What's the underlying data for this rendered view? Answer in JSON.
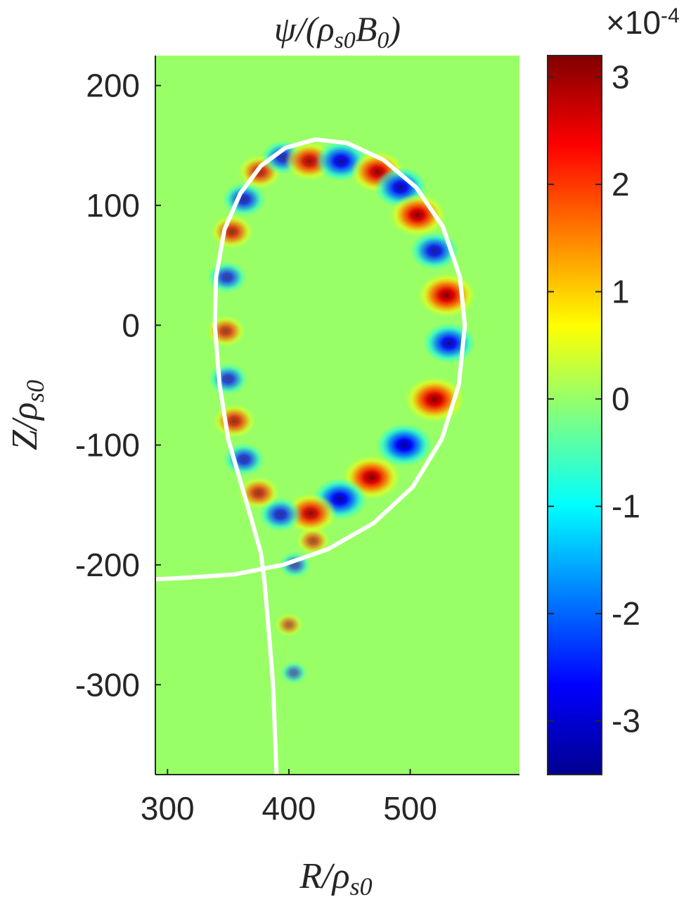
{
  "chart_data": {
    "type": "heatmap",
    "title": {
      "main": "ψ/(ρ",
      "sub1": "s0",
      "mid": "B",
      "sub2": "0",
      "close": ")"
    },
    "xlabel": {
      "main": "R/ρ",
      "sub": "s0"
    },
    "ylabel": {
      "main": "Z/ρ",
      "sub": "s0"
    },
    "xlim": [
      290,
      590
    ],
    "ylim": [
      -375,
      225
    ],
    "x_ticks": [
      300,
      400,
      500
    ],
    "y_ticks": [
      200,
      100,
      0,
      -100,
      -200,
      -300
    ],
    "colorbar": {
      "colormap": "jet",
      "range": [
        -3.5,
        3.2
      ],
      "ticks": [
        3,
        2,
        1,
        0,
        -1,
        -2,
        -3
      ],
      "exponent_label": {
        "base": "×10",
        "exp": "-4"
      }
    },
    "background_color": "#99ff66",
    "separatrix_color": "#ffffff",
    "separatrix": [
      [
        390,
        -380
      ],
      [
        387,
        -300
      ],
      [
        383,
        -250
      ],
      [
        380,
        -215
      ],
      [
        377,
        -190
      ],
      [
        370,
        -165
      ],
      [
        360,
        -130
      ],
      [
        350,
        -95
      ],
      [
        343,
        -50
      ],
      [
        339,
        0
      ],
      [
        340,
        40
      ],
      [
        347,
        80
      ],
      [
        360,
        110
      ],
      [
        377,
        133
      ],
      [
        397,
        148
      ],
      [
        422,
        155
      ],
      [
        448,
        152
      ],
      [
        478,
        138
      ],
      [
        505,
        115
      ],
      [
        527,
        82
      ],
      [
        541,
        40
      ],
      [
        545,
        0
      ],
      [
        540,
        -50
      ],
      [
        526,
        -95
      ],
      [
        502,
        -135
      ],
      [
        470,
        -165
      ],
      [
        432,
        -187
      ],
      [
        395,
        -200
      ],
      [
        355,
        -208
      ],
      [
        310,
        -211
      ],
      [
        290,
        -212
      ]
    ],
    "lobes": [
      {
        "R": 530,
        "Z": 25,
        "sign": 1,
        "amp": 0.95
      },
      {
        "R": 532,
        "Z": -15,
        "sign": -1,
        "amp": 0.8
      },
      {
        "R": 520,
        "Z": -62,
        "sign": 1,
        "amp": 1.0
      },
      {
        "R": 495,
        "Z": -100,
        "sign": -1,
        "amp": 0.9
      },
      {
        "R": 468,
        "Z": -127,
        "sign": 1,
        "amp": 0.95
      },
      {
        "R": 442,
        "Z": -145,
        "sign": -1,
        "amp": 0.85
      },
      {
        "R": 418,
        "Z": -157,
        "sign": 1,
        "amp": 0.8
      },
      {
        "R": 393,
        "Z": -158,
        "sign": -1,
        "amp": 0.55
      },
      {
        "R": 375,
        "Z": -140,
        "sign": 1,
        "amp": 0.5
      },
      {
        "R": 363,
        "Z": -112,
        "sign": -1,
        "amp": 0.5
      },
      {
        "R": 355,
        "Z": -80,
        "sign": 1,
        "amp": 0.55
      },
      {
        "R": 350,
        "Z": -45,
        "sign": -1,
        "amp": 0.45
      },
      {
        "R": 348,
        "Z": -5,
        "sign": 1,
        "amp": 0.45
      },
      {
        "R": 349,
        "Z": 40,
        "sign": -1,
        "amp": 0.45
      },
      {
        "R": 353,
        "Z": 78,
        "sign": 1,
        "amp": 0.55
      },
      {
        "R": 363,
        "Z": 105,
        "sign": -1,
        "amp": 0.55
      },
      {
        "R": 376,
        "Z": 128,
        "sign": 1,
        "amp": 0.55
      },
      {
        "R": 395,
        "Z": 140,
        "sign": -1,
        "amp": 0.55
      },
      {
        "R": 417,
        "Z": 137,
        "sign": 1,
        "amp": 0.75
      },
      {
        "R": 443,
        "Z": 137,
        "sign": -1,
        "amp": 0.8
      },
      {
        "R": 473,
        "Z": 128,
        "sign": 1,
        "amp": 0.85
      },
      {
        "R": 492,
        "Z": 115,
        "sign": -1,
        "amp": 0.8
      },
      {
        "R": 506,
        "Z": 92,
        "sign": 1,
        "amp": 0.9
      },
      {
        "R": 520,
        "Z": 62,
        "sign": -1,
        "amp": 0.7
      },
      {
        "R": 420,
        "Z": -180,
        "sign": 1,
        "amp": 0.3
      },
      {
        "R": 405,
        "Z": -200,
        "sign": -1,
        "amp": 0.25
      },
      {
        "R": 400,
        "Z": -250,
        "sign": 1,
        "amp": 0.15
      },
      {
        "R": 404,
        "Z": -290,
        "sign": -1,
        "amp": 0.12
      }
    ]
  }
}
